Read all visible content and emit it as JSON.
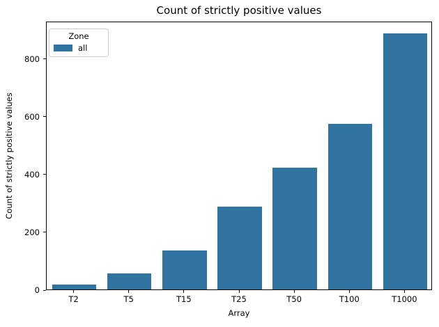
{
  "chart_data": {
    "type": "bar",
    "title": "Count of strictly positive values",
    "xlabel": "Array",
    "ylabel": "Count of strictly positive values",
    "categories": [
      "T2",
      "T5",
      "T15",
      "T25",
      "T50",
      "T100",
      "T1000"
    ],
    "series": [
      {
        "name": "all",
        "values": [
          18,
          56,
          135,
          287,
          421,
          573,
          886
        ]
      }
    ],
    "yticks": [
      0,
      200,
      400,
      600,
      800
    ],
    "ylim": [
      0,
      930
    ],
    "grid": false,
    "bar_width_fraction": 0.8,
    "bar_color": "#3274a1",
    "legend": {
      "title": "Zone",
      "position": "upper left",
      "items": [
        {
          "label": "all",
          "color": "#3274a1"
        }
      ]
    }
  }
}
